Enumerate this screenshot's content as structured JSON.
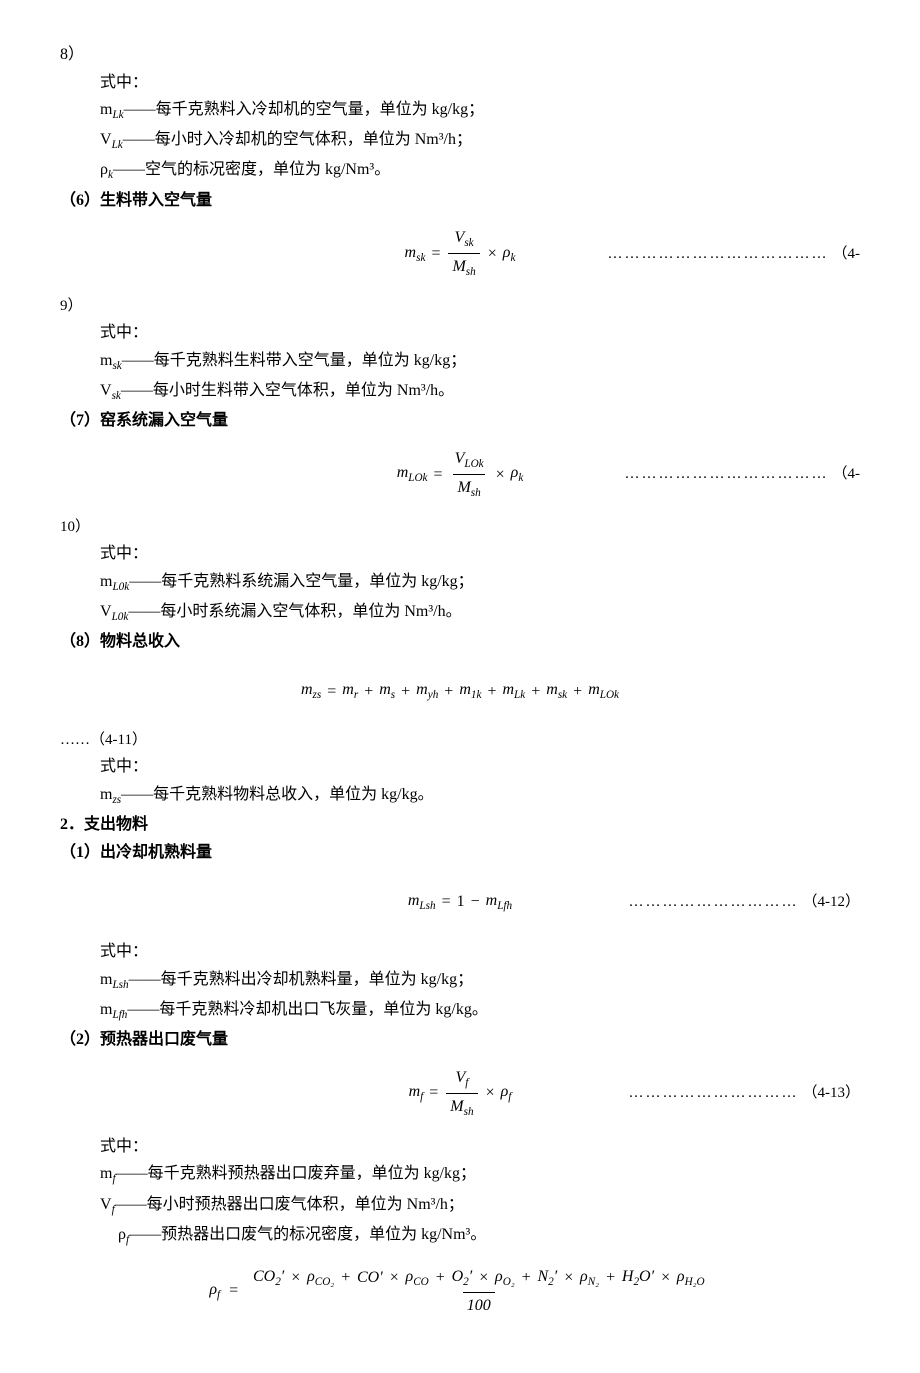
{
  "text_color": "#000000",
  "background_color": "#ffffff",
  "base_fontsize": 16,
  "topcont": "8）",
  "shizh": "式中：",
  "def_mLk": "m",
  "def_mLk_sub": "Lk",
  "def_mLk_txt": "——每千克熟料入冷却机的空气量，单位为 kg/kg；",
  "def_VLk": "V",
  "def_VLk_sub": "Lk",
  "def_VLk_txt": "——每小时入冷却机的空气体积，单位为 Nm³/h；",
  "def_rhok": "ρ",
  "def_rhok_sub": "k",
  "def_rhok_txt": "——空气的标况密度，单位为 kg/Nm³。",
  "sec6": "（6）生料带入空气量",
  "f6_lhs": "m",
  "f6_lhs_sub": "sk",
  "f6_num": "V",
  "f6_num_sub": "sk",
  "f6_den": "M",
  "f6_den_sub": "sh",
  "f6_rho": "ρ",
  "f6_rho_sub": "k",
  "f6_eqpre": "（4-",
  "cont9": "9）",
  "def_msk_txt": "——每千克熟料生料带入空气量，单位为 kg/kg；",
  "def_Vsk_txt": "——每小时生料带入空气体积，单位为 Nm³/h。",
  "sec7": "（7）窑系统漏入空气量",
  "f7_lhs": "m",
  "f7_lhs_sub": "LOk",
  "f7_num": "V",
  "f7_num_sub": "LOk",
  "f7_den": "M",
  "f7_den_sub": "sh",
  "f7_rho": "ρ",
  "f7_rho_sub": "k",
  "f7_eqpre": "（4-",
  "cont10": "10）",
  "def_mL0k_txt": "——每千克熟料系统漏入空气量，单位为 kg/kg；",
  "def_VL0k_txt": "——每小时系统漏入空气体积，单位为 Nm³/h。",
  "sec8": "（8）物料总收入",
  "f8_lhs": "m",
  "f8_lhs_sub": "zs",
  "f8_t1": "m",
  "f8_t1_sub": "r",
  "f8_t2": "m",
  "f8_t2_sub": "s",
  "f8_t3": "m",
  "f8_t3_sub": "yh",
  "f8_t4": "m",
  "f8_t4_sub": "1k",
  "f8_t5": "m",
  "f8_t5_sub": "Lk",
  "f8_t6": "m",
  "f8_t6_sub": "sk",
  "f8_t7": "m",
  "f8_t7_sub": "LOk",
  "f8_eq": "……（4-11）",
  "def_mzs_txt": "——每千克熟料物料总收入，单位为 kg/kg。",
  "sec2": "2．支出物料",
  "sec2_1": "（1）出冷却机熟料量",
  "f21_lhs": "m",
  "f21_lhs_sub": "Lsh",
  "f21_rhs1": "1",
  "f21_rhs2": "m",
  "f21_rhs2_sub": "Lfh",
  "f21_eq": "（4-12）",
  "def_mLsh_txt": "——每千克熟料出冷却机熟料量，单位为 kg/kg；",
  "def_mLfh_txt": "——每千克熟料冷却机出口飞灰量，单位为 kg/kg。",
  "sec2_2": "（2）预热器出口废气量",
  "f22_lhs": "m",
  "f22_lhs_sub": "f",
  "f22_num": "V",
  "f22_num_sub": "f",
  "f22_den": "M",
  "f22_den_sub": "sh",
  "f22_rho": "ρ",
  "f22_rho_sub": "f",
  "f22_eq": "（4-13）",
  "def_mf_txt": "——每千克熟料预热器出口废弃量，单位为 kg/kg；",
  "def_Vf_txt": "——每小时预热器出口废气体积，单位为 Nm³/h；",
  "def_rhof_txt": "——预热器出口废气的标况密度，单位为 kg/Nm³。",
  "f23_lhs": "ρ",
  "f23_lhs_sub": "f",
  "f23_n1a": "CO",
  "f23_n1b": "′",
  "f23_n1sub": "2",
  "f23_r1": "ρ",
  "f23_r1sub": "CO₂",
  "f23_n2a": "CO",
  "f23_n2b": "′",
  "f23_r2": "ρ",
  "f23_r2sub": "CO",
  "f23_n3a": "O",
  "f23_n3b": "′",
  "f23_n3sub": "2",
  "f23_r3": "ρ",
  "f23_r3sub": "O₂",
  "f23_n4a": "N",
  "f23_n4b": "′",
  "f23_n4sub": "2",
  "f23_r4": "ρ",
  "f23_r4sub": "N₂",
  "f23_n5a": "H",
  "f23_n5sub1": "2",
  "f23_n5b": "O",
  "f23_n5c": "′",
  "f23_r5": "ρ",
  "f23_r5sub": "H₂O",
  "f23_den": "100"
}
